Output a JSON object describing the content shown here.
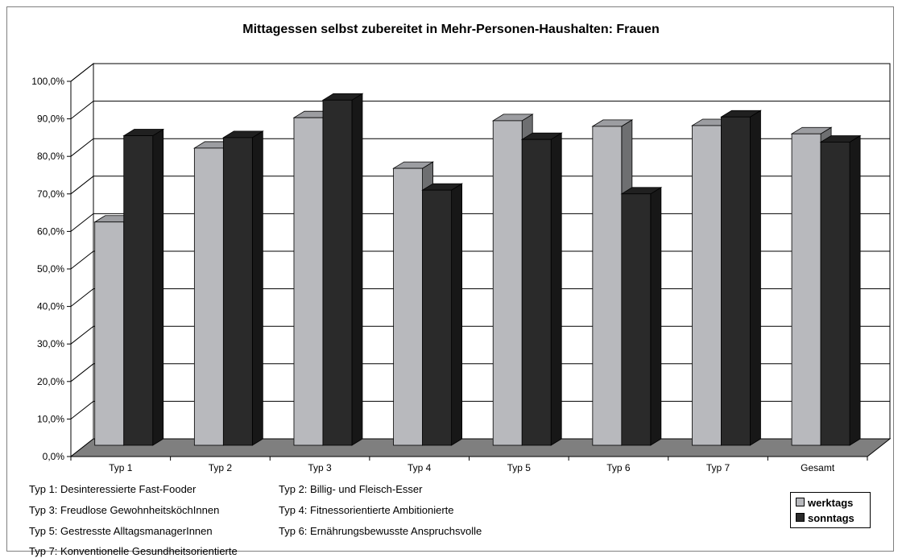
{
  "chart_data": {
    "type": "bar",
    "title": "Mittagessen selbst zubereitet in Mehr-Personen-Haushalten: Frauen",
    "categories": [
      "Typ 1",
      "Typ 2",
      "Typ 3",
      "Typ 4",
      "Typ 5",
      "Typ 6",
      "Typ 7",
      "Gesamt"
    ],
    "series": [
      {
        "name": "werktags",
        "color": "#b8b9bd",
        "values": [
          59.5,
          79.2,
          87.3,
          73.8,
          86.5,
          85.0,
          85.2,
          83.0
        ]
      },
      {
        "name": "sonntags",
        "color": "#2a2a2a",
        "values": [
          82.5,
          82.0,
          92.0,
          68.0,
          81.5,
          67.0,
          87.5,
          80.8
        ]
      }
    ],
    "ylim": [
      0,
      100
    ],
    "y_ticks": [
      "0,0%",
      "10,0%",
      "20,0%",
      "30,0%",
      "40,0%",
      "50,0%",
      "60,0%",
      "70,0%",
      "80,0%",
      "90,0%",
      "100,0%"
    ],
    "grid": true,
    "chart_style": "3d-clustered-column",
    "legend_position": "bottom-right"
  },
  "notes": [
    "Typ 1: Desinteressierte Fast-Fooder",
    "Typ 2: Billig- und Fleisch-Esser",
    "Typ 3: Freudlose GewohnheitsköchInnen",
    "Typ 4: Fitnessorientierte Ambitionierte",
    "Typ 5: Gestresste AlltagsmanagerInnen",
    "Typ 6: Ernährungsbewusste Anspruchsvolle",
    "Typ 7: Konventionelle Gesundheitsorientierte"
  ],
  "legend": {
    "werktags": "werktags",
    "sonntags": "sonntags"
  }
}
